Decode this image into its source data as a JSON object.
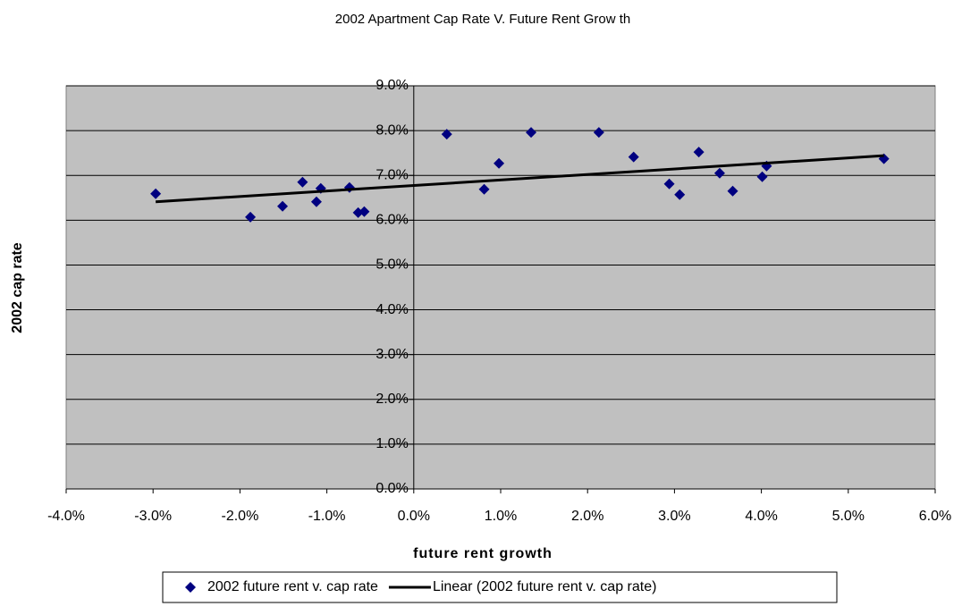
{
  "chart_data": {
    "type": "scatter",
    "title": "2002 Apartment Cap Rate V. Future Rent Grow th",
    "xlabel": "future rent growth",
    "ylabel": "2002 cap rate",
    "xlim": [
      -4,
      6
    ],
    "ylim": [
      0,
      9
    ],
    "xticks": [
      {
        "value": -4,
        "label": "-4.0%"
      },
      {
        "value": -3,
        "label": "-3.0%"
      },
      {
        "value": -2,
        "label": "-2.0%"
      },
      {
        "value": -1,
        "label": "-1.0%"
      },
      {
        "value": 0,
        "label": "0.0%"
      },
      {
        "value": 1,
        "label": "1.0%"
      },
      {
        "value": 2,
        "label": "2.0%"
      },
      {
        "value": 3,
        "label": "3.0%"
      },
      {
        "value": 4,
        "label": "4.0%"
      },
      {
        "value": 5,
        "label": "5.0%"
      },
      {
        "value": 6,
        "label": "6.0%"
      }
    ],
    "yticks": [
      {
        "value": 0,
        "label": "0.0%"
      },
      {
        "value": 1,
        "label": "1.0%"
      },
      {
        "value": 2,
        "label": "2.0%"
      },
      {
        "value": 3,
        "label": "3.0%"
      },
      {
        "value": 4,
        "label": "4.0%"
      },
      {
        "value": 5,
        "label": "5.0%"
      },
      {
        "value": 6,
        "label": "6.0%"
      },
      {
        "value": 7,
        "label": "7.0%"
      },
      {
        "value": 8,
        "label": "8.0%"
      },
      {
        "value": 9,
        "label": "9.0%"
      }
    ],
    "grid": true,
    "series": [
      {
        "name": "2002 future rent v. cap rate",
        "type": "scatter",
        "color": "#000080",
        "x": [
          -2.97,
          -1.88,
          -1.51,
          -1.28,
          -1.12,
          -1.07,
          -0.74,
          -0.64,
          -0.57,
          0.38,
          0.81,
          0.98,
          1.35,
          2.13,
          2.53,
          2.94,
          3.06,
          3.28,
          3.52,
          3.67,
          4.01,
          4.06,
          5.41
        ],
        "values": [
          6.59,
          6.07,
          6.31,
          6.85,
          6.41,
          6.71,
          6.73,
          6.17,
          6.19,
          7.92,
          6.69,
          7.27,
          7.96,
          7.96,
          7.41,
          6.81,
          6.57,
          7.52,
          7.05,
          6.65,
          6.97,
          7.21,
          7.37
        ]
      },
      {
        "name": "Linear (2002 future rent v. cap rate)",
        "type": "line",
        "color": "#000000",
        "x": [
          -2.97,
          5.41
        ],
        "values": [
          6.41,
          7.44
        ]
      }
    ]
  }
}
